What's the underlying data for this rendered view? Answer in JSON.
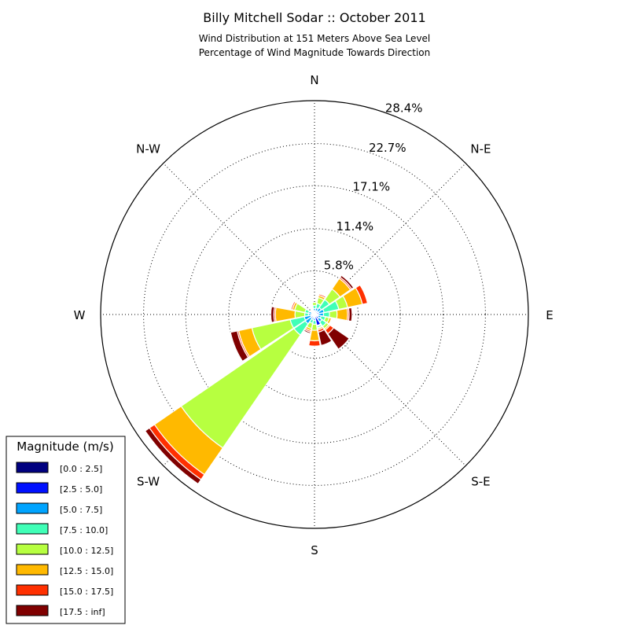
{
  "chart_data": {
    "type": "windrose",
    "title": "Billy Mitchell Sodar :: October 2011",
    "subtitle_lines": [
      "Wind Distribution at 151 Meters Above Sea Level",
      "Percentage of Wind Magnitude Towards Direction"
    ],
    "directions": [
      "N",
      "N-E",
      "E",
      "S-E",
      "S",
      "S-W",
      "W",
      "N-W"
    ],
    "radial_ticks": [
      "5.8%",
      "11.4%",
      "17.1%",
      "22.7%",
      "28.4%"
    ],
    "radial_tick_values": [
      5.8,
      11.4,
      17.1,
      22.7,
      28.4
    ],
    "rmax": 28.4,
    "legend_title": "Magnitude (m/s)",
    "bins": [
      {
        "label": "[0.0 : 2.5]",
        "color": "#000080"
      },
      {
        "label": "[2.5 : 5.0]",
        "color": "#0010ff"
      },
      {
        "label": "[5.0 : 7.5]",
        "color": "#00a4ff"
      },
      {
        "label": "[7.5 : 10.0]",
        "color": "#40ffb7"
      },
      {
        "label": "[10.0 : 12.5]",
        "color": "#b7ff40"
      },
      {
        "label": "[12.5 : 15.0]",
        "color": "#ffb900"
      },
      {
        "label": "[15.0 : 17.5]",
        "color": "#ff3000"
      },
      {
        "label": "[17.5 : inf]",
        "color": "#800000"
      }
    ],
    "sectors": [
      {
        "dir_deg": 0,
        "cumulative": [
          0.2,
          0.5,
          0.8,
          1.2,
          1.6,
          1.6,
          1.6,
          1.6
        ]
      },
      {
        "dir_deg": 22.5,
        "cumulative": [
          0.2,
          0.5,
          0.9,
          1.5,
          2.3,
          2.6,
          2.8,
          2.9
        ]
      },
      {
        "dir_deg": 45,
        "cumulative": [
          0.2,
          0.5,
          1.1,
          2.4,
          4.1,
          5.8,
          6.0,
          6.3
        ]
      },
      {
        "dir_deg": 67.5,
        "cumulative": [
          0.2,
          0.6,
          1.3,
          3.3,
          4.5,
          6.5,
          7.2,
          7.2
        ]
      },
      {
        "dir_deg": 90,
        "cumulative": [
          0.2,
          0.5,
          1.2,
          2.0,
          3.0,
          4.4,
          4.6,
          5.0
        ]
      },
      {
        "dir_deg": 112.5,
        "cumulative": [
          0.2,
          0.5,
          0.9,
          1.5,
          2.0,
          2.3,
          2.4,
          2.5
        ]
      },
      {
        "dir_deg": 135,
        "cumulative": [
          0.3,
          0.7,
          1.2,
          1.9,
          2.3,
          2.5,
          3.1,
          5.6
        ]
      },
      {
        "dir_deg": 157.5,
        "cumulative": [
          0.2,
          1.5,
          1.6,
          1.8,
          1.9,
          2.1,
          2.4,
          4.2
        ]
      },
      {
        "dir_deg": 180,
        "cumulative": [
          0.2,
          0.5,
          0.8,
          1.3,
          2.1,
          3.5,
          4.2,
          4.2
        ]
      },
      {
        "dir_deg": 202.5,
        "cumulative": [
          0.2,
          0.4,
          0.7,
          1.2,
          1.9,
          2.2,
          2.4,
          2.6
        ]
      },
      {
        "dir_deg": 225,
        "cumulative": [
          0.2,
          0.6,
          1.5,
          3.3,
          21.5,
          25.8,
          26.6,
          27.3
        ]
      },
      {
        "dir_deg": 247.5,
        "cumulative": [
          0.2,
          0.5,
          1.4,
          3.3,
          8.5,
          10.3,
          10.5,
          11.4
        ]
      },
      {
        "dir_deg": 270,
        "cumulative": [
          0.2,
          0.4,
          0.8,
          1.3,
          2.6,
          5.2,
          5.4,
          5.8
        ]
      },
      {
        "dir_deg": 292.5,
        "cumulative": [
          0.2,
          0.4,
          0.8,
          1.3,
          2.7,
          3.0,
          3.2,
          3.3
        ]
      },
      {
        "dir_deg": 315,
        "cumulative": [
          0.1,
          0.2,
          0.3,
          0.4,
          0.5,
          0.5,
          0.5,
          0.5
        ]
      },
      {
        "dir_deg": 337.5,
        "cumulative": [
          0.1,
          0.2,
          0.3,
          0.4,
          0.5,
          0.5,
          0.5,
          0.5
        ]
      }
    ]
  }
}
